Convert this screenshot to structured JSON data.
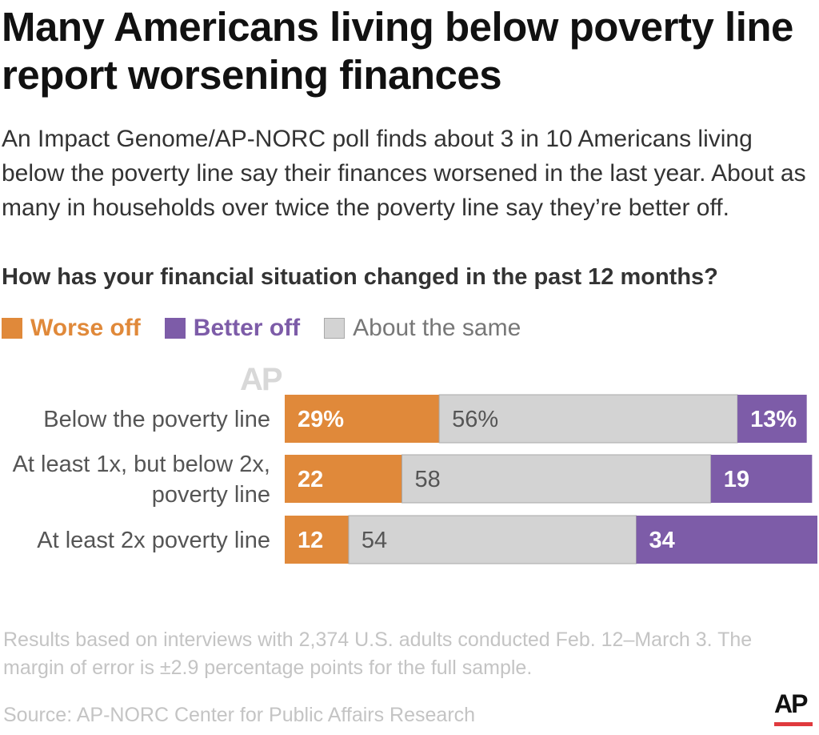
{
  "title": "Many Americans living below poverty line report worsening finances",
  "subtitle": "An Impact Genome/AP-NORC poll finds about 3 in 10 Americans living below the poverty line say their finances worsened in the last year. About as many in households over twice the poverty line say they’re better off.",
  "watermark": "AP",
  "note": "Results based on interviews with 2,374 U.S. adults conducted Feb. 12–March 3. The margin of error is ±2.9 percentage points for the full sample.",
  "source": "Source: AP-NORC Center for Public Affairs Research",
  "logo": "AP",
  "colors": {
    "worse": "#e0893a",
    "better": "#7d5ca8",
    "same": "#d3d3d3",
    "same_border": "#a8a8a8"
  },
  "chart_data": {
    "type": "bar",
    "orientation": "horizontal",
    "stacked": true,
    "title": "How has your financial situation changed in the past 12 months?",
    "legend": [
      "Worse off",
      "Better off",
      "About the same"
    ],
    "categories": [
      [
        "Below the poverty line"
      ],
      [
        "At least 1x, but below 2x,",
        "poverty line"
      ],
      [
        "At least 2x poverty line"
      ]
    ],
    "series": [
      {
        "name": "Worse off",
        "key": "worse",
        "values": [
          29,
          22,
          12
        ],
        "labels": [
          "29%",
          "22",
          "12"
        ]
      },
      {
        "name": "About the same",
        "key": "same",
        "values": [
          56,
          58,
          54
        ],
        "labels": [
          "56%",
          "58",
          "54"
        ]
      },
      {
        "name": "Better off",
        "key": "better",
        "values": [
          13,
          19,
          34
        ],
        "labels": [
          "13%",
          "19",
          "34"
        ]
      }
    ],
    "xlim": [
      0,
      100
    ]
  }
}
